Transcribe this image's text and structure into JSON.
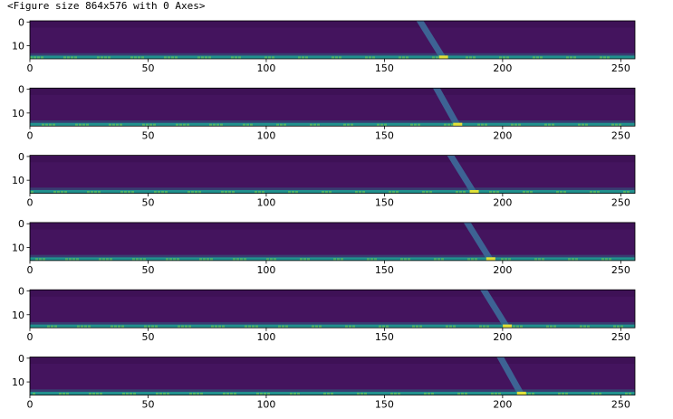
{
  "header_text": "<Figure size 864x576 with 0 Axes>",
  "chart_data": {
    "type": "heatmap",
    "colormap": "viridis",
    "grid": false,
    "xlim": [
      0,
      256
    ],
    "ylim": [
      0,
      15
    ],
    "xticks": [
      "0",
      "50",
      "100",
      "150",
      "200",
      "250"
    ],
    "yticks": [
      "0",
      "10"
    ],
    "panels": [
      {
        "band_x_top": 165,
        "band_x_bottom": 175,
        "bright_row": 15
      },
      {
        "band_x_top": 172,
        "band_x_bottom": 181,
        "bright_row": 15
      },
      {
        "band_x_top": 178,
        "band_x_bottom": 188,
        "bright_row": 15
      },
      {
        "band_x_top": 185,
        "band_x_bottom": 195,
        "bright_row": 15
      },
      {
        "band_x_top": 192,
        "band_x_bottom": 202,
        "bright_row": 15
      },
      {
        "band_x_top": 199,
        "band_x_bottom": 208,
        "bright_row": 15
      }
    ]
  },
  "colors": {
    "background": "#44145e",
    "band": "#3d6c9a",
    "edge": "#21908d",
    "highlight": "#e0e13a"
  }
}
